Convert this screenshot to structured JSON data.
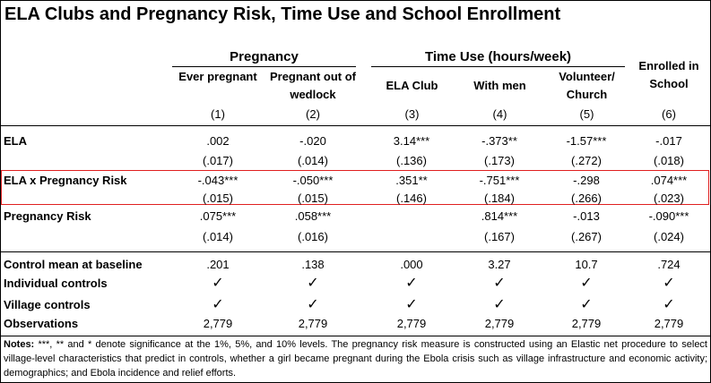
{
  "title": "ELA Clubs and Pregnancy Risk, Time Use and School Enrollment",
  "groups": {
    "pregnancy": "Pregnancy",
    "time_use": "Time Use (hours/week)"
  },
  "columns": [
    {
      "header": "Ever pregnant",
      "num": "(1)"
    },
    {
      "header": "Pregnant out of wedlock",
      "num": "(2)"
    },
    {
      "header": "ELA Club",
      "num": "(3)"
    },
    {
      "header": "With men",
      "num": "(4)"
    },
    {
      "header": "Volunteer/ Church",
      "num": "(5)"
    },
    {
      "header": "Enrolled in School",
      "num": "(6)"
    }
  ],
  "rows": {
    "ela": {
      "label": "ELA",
      "coef": [
        ".002",
        "-.020",
        "3.14***",
        "-.373**",
        "-1.57***",
        "-.017"
      ],
      "se": [
        "(.017)",
        "(.014)",
        "(.136)",
        "(.173)",
        "(.272)",
        "(.018)"
      ]
    },
    "ela_x_risk": {
      "label": "ELA x Pregnancy Risk",
      "coef": [
        "-.043***",
        "-.050***",
        ".351**",
        "-.751***",
        "-.298",
        ".074***"
      ],
      "se": [
        "(.015)",
        "(.015)",
        "(.146)",
        "(.184)",
        "(.266)",
        "(.023)"
      ]
    },
    "risk": {
      "label": "Pregnancy Risk",
      "coef": [
        ".075***",
        ".058***",
        "",
        ".814***",
        "-.013",
        "-.090***"
      ],
      "se": [
        "(.014)",
        "(.016)",
        "",
        "(.167)",
        "(.267)",
        "(.024)"
      ]
    }
  },
  "footer_rows": {
    "control_mean": {
      "label": "Control mean at baseline",
      "values": [
        ".201",
        ".138",
        ".000",
        "3.27",
        "10.7",
        ".724"
      ]
    },
    "individual_controls": {
      "label": "Individual controls"
    },
    "village_controls": {
      "label": "Village controls"
    },
    "observations": {
      "label": "Observations",
      "values": [
        "2,779",
        "2,779",
        "2,779",
        "2,779",
        "2,779",
        "2,779"
      ]
    }
  },
  "check_glyph": "✓",
  "notes": {
    "label": "Notes:",
    "text": " ***, ** and * denote significance at the 1%, 5%, and 10% levels. The pregnancy risk measure is constructed using an Elastic net procedure to select village-level characteristics that predict in controls, whether a girl became pregnant during the Ebola crisis such as village infrastructure and economic activity; demographics; and Ebola incidence and relief efforts."
  },
  "colors": {
    "highlight": "#e02020"
  }
}
